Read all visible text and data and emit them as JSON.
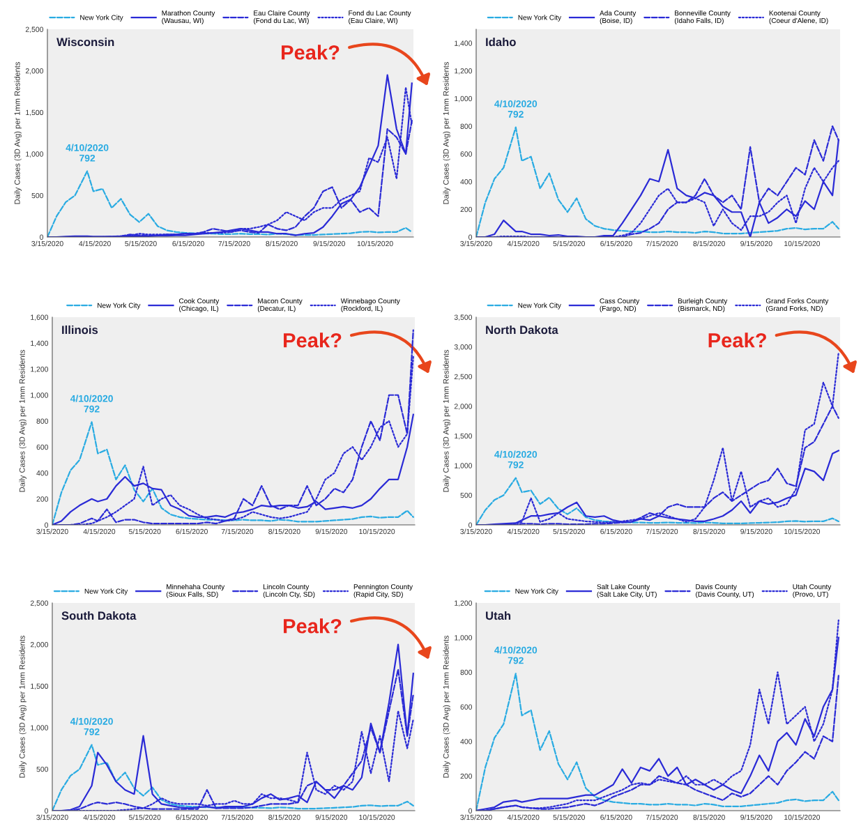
{
  "chart_data": [
    {
      "type": "line",
      "title": "Wisconsin",
      "ylabel": "Daily Cases (3D Avg) per 1mm Residents",
      "legend": "top",
      "x": [
        "2020-03-15",
        "2020-03-21",
        "2020-03-27",
        "2020-04-02",
        "2020-04-10",
        "2020-04-14",
        "2020-04-20",
        "2020-04-26",
        "2020-05-02",
        "2020-05-08",
        "2020-05-14",
        "2020-05-20",
        "2020-05-26",
        "2020-06-01",
        "2020-06-07",
        "2020-06-13",
        "2020-06-19",
        "2020-06-25",
        "2020-07-01",
        "2020-07-07",
        "2020-07-13",
        "2020-07-19",
        "2020-07-25",
        "2020-07-31",
        "2020-08-06",
        "2020-08-12",
        "2020-08-18",
        "2020-08-24",
        "2020-08-30",
        "2020-09-05",
        "2020-09-11",
        "2020-09-17",
        "2020-09-23",
        "2020-09-29",
        "2020-10-05",
        "2020-10-11",
        "2020-10-17",
        "2020-10-23",
        "2020-10-29",
        "2020-11-04",
        "2020-11-08"
      ],
      "xlim": [
        "2020-03-15",
        "2020-11-09"
      ],
      "xticks": [
        {
          "value": "2020-03-15",
          "label": "3/15/2020"
        },
        {
          "value": "2020-04-15",
          "label": "4/15/2020"
        },
        {
          "value": "2020-05-15",
          "label": "5/15/2020"
        },
        {
          "value": "2020-06-15",
          "label": "6/15/2020"
        },
        {
          "value": "2020-07-15",
          "label": "7/15/2020"
        },
        {
          "value": "2020-08-15",
          "label": "8/15/2020"
        },
        {
          "value": "2020-09-15",
          "label": "9/15/2020"
        },
        {
          "value": "2020-10-15",
          "label": "10/15/2020"
        }
      ],
      "ylim": [
        0,
        2500
      ],
      "yticks": [
        0,
        500,
        {
          "value": 1000,
          "label": "1,000"
        },
        {
          "value": 1500,
          "label": "1,500"
        },
        {
          "value": 2000,
          "label": "2,000"
        },
        {
          "value": 2500,
          "label": "2,500"
        }
      ],
      "series": [
        {
          "name": "New York City",
          "color": "#29abe2",
          "line_style": "dashed",
          "values": [
            0,
            250,
            420,
            500,
            792,
            550,
            580,
            350,
            460,
            270,
            180,
            280,
            130,
            80,
            60,
            50,
            45,
            40,
            40,
            35,
            35,
            40,
            35,
            35,
            30,
            40,
            35,
            25,
            25,
            25,
            30,
            35,
            40,
            45,
            60,
            65,
            55,
            60,
            60,
            110,
            60
          ]
        },
        {
          "name": "Marathon County\n(Wausau, WI)",
          "color": "#2a2ad6",
          "line_style": "solid",
          "values": [
            0,
            0,
            5,
            10,
            10,
            5,
            5,
            5,
            5,
            10,
            10,
            10,
            15,
            15,
            20,
            20,
            30,
            40,
            50,
            60,
            80,
            100,
            80,
            60,
            60,
            40,
            40,
            20,
            40,
            50,
            120,
            250,
            400,
            450,
            600,
            850,
            1100,
            1950,
            1300,
            1000,
            1850
          ]
        },
        {
          "name": "Eau Claire County\n(Fond du Lac, WI)",
          "color": "#2a2ad6",
          "line_style": "dashed",
          "values": [
            0,
            0,
            0,
            0,
            0,
            0,
            0,
            5,
            10,
            30,
            20,
            20,
            20,
            30,
            30,
            40,
            40,
            60,
            100,
            80,
            60,
            80,
            60,
            50,
            150,
            100,
            80,
            120,
            250,
            350,
            550,
            600,
            350,
            450,
            300,
            350,
            250,
            1300,
            1200,
            1000,
            1400
          ]
        },
        {
          "name": "Fond du Lac County\n(Eau Claire, WI)",
          "color": "#2a2ad6",
          "line_style": "dotted",
          "values": [
            0,
            0,
            0,
            0,
            0,
            0,
            0,
            0,
            10,
            20,
            40,
            30,
            30,
            30,
            30,
            40,
            40,
            50,
            50,
            50,
            60,
            100,
            100,
            120,
            150,
            200,
            300,
            250,
            200,
            300,
            350,
            350,
            450,
            500,
            550,
            950,
            900,
            1200,
            700,
            1800,
            1350
          ]
        }
      ],
      "annotations": [
        {
          "text": "4/10/2020\n792",
          "x": "2020-04-10",
          "y": 792
        },
        "Peak?"
      ]
    },
    {
      "type": "line",
      "title": "Idaho",
      "ylabel": "Daily Cases (3D Avg) per 1mm Residents",
      "legend": "top",
      "x": [
        "2020-03-15",
        "2020-03-21",
        "2020-03-27",
        "2020-04-02",
        "2020-04-10",
        "2020-04-14",
        "2020-04-20",
        "2020-04-26",
        "2020-05-02",
        "2020-05-08",
        "2020-05-14",
        "2020-05-20",
        "2020-05-26",
        "2020-06-01",
        "2020-06-07",
        "2020-06-13",
        "2020-06-19",
        "2020-06-25",
        "2020-07-01",
        "2020-07-07",
        "2020-07-13",
        "2020-07-19",
        "2020-07-25",
        "2020-07-31",
        "2020-08-06",
        "2020-08-12",
        "2020-08-18",
        "2020-08-24",
        "2020-08-30",
        "2020-09-05",
        "2020-09-11",
        "2020-09-17",
        "2020-09-23",
        "2020-09-29",
        "2020-10-05",
        "2020-10-11",
        "2020-10-17",
        "2020-10-23",
        "2020-10-29",
        "2020-11-04",
        "2020-11-08"
      ],
      "xlim": [
        "2020-03-15",
        "2020-11-09"
      ],
      "xticks": [
        {
          "value": "2020-03-15",
          "label": "3/15/2020"
        },
        {
          "value": "2020-04-15",
          "label": "4/15/2020"
        },
        {
          "value": "2020-05-15",
          "label": "5/15/2020"
        },
        {
          "value": "2020-06-15",
          "label": "6/15/2020"
        },
        {
          "value": "2020-07-15",
          "label": "7/15/2020"
        },
        {
          "value": "2020-08-15",
          "label": "8/15/2020"
        },
        {
          "value": "2020-09-15",
          "label": "9/15/2020"
        },
        {
          "value": "2020-10-15",
          "label": "10/15/2020"
        }
      ],
      "ylim": [
        0,
        1500
      ],
      "yticks": [
        0,
        200,
        400,
        600,
        800,
        {
          "value": 1000,
          "label": "1,000"
        },
        {
          "value": 1200,
          "label": "1,200"
        },
        {
          "value": 1400,
          "label": "1,400"
        }
      ],
      "series": [
        {
          "name": "New York City",
          "color": "#29abe2",
          "line_style": "dashed",
          "values": [
            0,
            250,
            420,
            500,
            792,
            550,
            580,
            350,
            460,
            270,
            180,
            280,
            130,
            80,
            60,
            50,
            45,
            40,
            40,
            35,
            35,
            40,
            35,
            35,
            30,
            40,
            35,
            25,
            25,
            25,
            30,
            35,
            40,
            45,
            60,
            65,
            55,
            60,
            60,
            110,
            60
          ]
        },
        {
          "name": "Ada County\n(Boise, ID)",
          "color": "#2a2ad6",
          "line_style": "solid",
          "values": [
            0,
            0,
            20,
            120,
            40,
            40,
            20,
            20,
            10,
            15,
            5,
            5,
            0,
            0,
            10,
            10,
            100,
            200,
            300,
            420,
            400,
            630,
            350,
            300,
            280,
            320,
            300,
            220,
            180,
            180,
            0,
            250,
            100,
            140,
            200,
            150,
            260,
            200,
            400,
            300,
            700
          ]
        },
        {
          "name": "Bonneville County\n(Idaho Falls, ID)",
          "color": "#2a2ad6",
          "line_style": "dashed",
          "values": [
            0,
            0,
            0,
            0,
            0,
            0,
            0,
            0,
            0,
            0,
            0,
            0,
            0,
            0,
            0,
            0,
            0,
            20,
            30,
            60,
            100,
            200,
            250,
            250,
            300,
            420,
            300,
            250,
            300,
            200,
            650,
            250,
            350,
            300,
            400,
            500,
            450,
            700,
            550,
            800,
            700
          ]
        },
        {
          "name": "Kootenai County\n(Coeur d'Alene, ID)",
          "color": "#2a2ad6",
          "line_style": "dotted",
          "values": [
            0,
            0,
            0,
            5,
            5,
            5,
            0,
            0,
            0,
            0,
            0,
            0,
            0,
            0,
            0,
            0,
            10,
            30,
            100,
            200,
            300,
            350,
            250,
            250,
            280,
            250,
            80,
            200,
            100,
            50,
            150,
            150,
            180,
            250,
            300,
            100,
            350,
            500,
            400,
            500,
            550
          ]
        }
      ],
      "annotations": [
        {
          "text": "4/10/2020\n792",
          "x": "2020-04-10",
          "y": 792
        }
      ]
    },
    {
      "type": "line",
      "title": "Illinois",
      "ylabel": "Daily Cases (3D Avg) per 1mm Residents",
      "legend": "top",
      "x": [
        "2020-03-15",
        "2020-03-21",
        "2020-03-27",
        "2020-04-02",
        "2020-04-10",
        "2020-04-14",
        "2020-04-20",
        "2020-04-26",
        "2020-05-02",
        "2020-05-08",
        "2020-05-14",
        "2020-05-20",
        "2020-05-26",
        "2020-06-01",
        "2020-06-07",
        "2020-06-13",
        "2020-06-19",
        "2020-06-25",
        "2020-07-01",
        "2020-07-07",
        "2020-07-13",
        "2020-07-19",
        "2020-07-25",
        "2020-07-31",
        "2020-08-06",
        "2020-08-12",
        "2020-08-18",
        "2020-08-24",
        "2020-08-30",
        "2020-09-05",
        "2020-09-11",
        "2020-09-17",
        "2020-09-23",
        "2020-09-29",
        "2020-10-05",
        "2020-10-11",
        "2020-10-17",
        "2020-10-23",
        "2020-10-29",
        "2020-11-04",
        "2020-11-08"
      ],
      "xlim": [
        "2020-03-15",
        "2020-11-09"
      ],
      "xticks": [
        {
          "value": "2020-03-15",
          "label": "3/15/2020"
        },
        {
          "value": "2020-04-15",
          "label": "4/15/2020"
        },
        {
          "value": "2020-05-15",
          "label": "5/15/2020"
        },
        {
          "value": "2020-06-15",
          "label": "6/15/2020"
        },
        {
          "value": "2020-07-15",
          "label": "7/15/2020"
        },
        {
          "value": "2020-08-15",
          "label": "8/15/2020"
        },
        {
          "value": "2020-09-15",
          "label": "9/15/2020"
        },
        {
          "value": "2020-10-15",
          "label": "10/15/2020"
        }
      ],
      "ylim": [
        0,
        1600
      ],
      "yticks": [
        0,
        200,
        400,
        600,
        800,
        {
          "value": 1000,
          "label": "1,000"
        },
        {
          "value": 1200,
          "label": "1,200"
        },
        {
          "value": 1400,
          "label": "1,400"
        },
        {
          "value": 1600,
          "label": "1,600"
        }
      ],
      "series": [
        {
          "name": "New York City",
          "color": "#29abe2",
          "line_style": "dashed",
          "values": [
            0,
            250,
            420,
            500,
            792,
            550,
            580,
            350,
            460,
            270,
            180,
            280,
            130,
            80,
            60,
            50,
            45,
            40,
            40,
            35,
            35,
            40,
            35,
            35,
            30,
            40,
            35,
            25,
            25,
            25,
            30,
            35,
            40,
            45,
            60,
            65,
            55,
            60,
            60,
            110,
            60
          ]
        },
        {
          "name": "Cook County\n(Chicago, IL)",
          "color": "#2a2ad6",
          "line_style": "solid",
          "values": [
            0,
            30,
            100,
            150,
            200,
            180,
            200,
            300,
            370,
            300,
            320,
            280,
            270,
            150,
            120,
            70,
            60,
            60,
            70,
            60,
            90,
            100,
            120,
            150,
            140,
            150,
            150,
            130,
            140,
            180,
            120,
            130,
            140,
            130,
            150,
            200,
            280,
            350,
            350,
            600,
            850
          ]
        },
        {
          "name": "Macon County\n(Decatur, IL)",
          "color": "#2a2ad6",
          "line_style": "dashed",
          "values": [
            0,
            0,
            0,
            10,
            50,
            30,
            120,
            20,
            40,
            40,
            20,
            10,
            10,
            10,
            10,
            10,
            10,
            20,
            10,
            30,
            50,
            200,
            150,
            300,
            150,
            120,
            150,
            150,
            300,
            150,
            200,
            280,
            250,
            350,
            600,
            800,
            650,
            1000,
            1000,
            700,
            1500
          ]
        },
        {
          "name": "Winnebago County\n(Rockford, IL)",
          "color": "#2a2ad6",
          "line_style": "dotted",
          "values": [
            0,
            0,
            0,
            0,
            10,
            30,
            60,
            100,
            150,
            200,
            450,
            150,
            200,
            230,
            150,
            120,
            80,
            50,
            40,
            30,
            40,
            60,
            100,
            80,
            60,
            50,
            60,
            80,
            100,
            200,
            350,
            400,
            550,
            600,
            500,
            600,
            750,
            800,
            600,
            700,
            1300
          ]
        }
      ],
      "annotations": [
        {
          "text": "4/10/2020\n792",
          "x": "2020-04-10",
          "y": 792
        },
        "Peak?"
      ]
    },
    {
      "type": "line",
      "title": "North Dakota",
      "ylabel": "Daily Cases (3D Avg) per 1mm Residents",
      "legend": "top",
      "x": [
        "2020-03-15",
        "2020-03-21",
        "2020-03-27",
        "2020-04-02",
        "2020-04-10",
        "2020-04-14",
        "2020-04-20",
        "2020-04-26",
        "2020-05-02",
        "2020-05-08",
        "2020-05-14",
        "2020-05-20",
        "2020-05-26",
        "2020-06-01",
        "2020-06-07",
        "2020-06-13",
        "2020-06-19",
        "2020-06-25",
        "2020-07-01",
        "2020-07-07",
        "2020-07-13",
        "2020-07-19",
        "2020-07-25",
        "2020-07-31",
        "2020-08-06",
        "2020-08-12",
        "2020-08-18",
        "2020-08-24",
        "2020-08-30",
        "2020-09-05",
        "2020-09-11",
        "2020-09-17",
        "2020-09-23",
        "2020-09-29",
        "2020-10-05",
        "2020-10-11",
        "2020-10-17",
        "2020-10-23",
        "2020-10-29",
        "2020-11-04",
        "2020-11-08"
      ],
      "xlim": [
        "2020-03-15",
        "2020-11-09"
      ],
      "xticks": [
        {
          "value": "2020-03-15",
          "label": "3/15/2020"
        },
        {
          "value": "2020-04-15",
          "label": "4/15/2020"
        },
        {
          "value": "2020-05-15",
          "label": "5/15/2020"
        },
        {
          "value": "2020-06-15",
          "label": "6/15/2020"
        },
        {
          "value": "2020-07-15",
          "label": "7/15/2020"
        },
        {
          "value": "2020-08-15",
          "label": "8/15/2020"
        },
        {
          "value": "2020-09-15",
          "label": "9/15/2020"
        },
        {
          "value": "2020-10-15",
          "label": "10/15/2020"
        }
      ],
      "ylim": [
        0,
        3500
      ],
      "yticks": [
        0,
        500,
        {
          "value": 1000,
          "label": "1,000"
        },
        {
          "value": 1500,
          "label": "1,500"
        },
        {
          "value": 2000,
          "label": "2,000"
        },
        {
          "value": 2500,
          "label": "2,500"
        },
        {
          "value": 3000,
          "label": "3,000"
        },
        {
          "value": 3500,
          "label": "3,500"
        }
      ],
      "series": [
        {
          "name": "New York City",
          "color": "#29abe2",
          "line_style": "dashed",
          "values": [
            0,
            250,
            420,
            500,
            792,
            550,
            580,
            350,
            460,
            270,
            180,
            280,
            130,
            80,
            60,
            50,
            45,
            40,
            40,
            35,
            35,
            40,
            35,
            35,
            30,
            40,
            35,
            25,
            25,
            25,
            30,
            35,
            40,
            45,
            60,
            65,
            55,
            60,
            60,
            110,
            60
          ]
        },
        {
          "name": "Cass County\n(Fargo, ND)",
          "color": "#2a2ad6",
          "line_style": "solid",
          "values": [
            0,
            0,
            10,
            20,
            30,
            80,
            150,
            150,
            180,
            200,
            300,
            380,
            150,
            130,
            150,
            80,
            50,
            50,
            100,
            80,
            150,
            120,
            100,
            80,
            60,
            60,
            100,
            150,
            250,
            400,
            200,
            400,
            350,
            380,
            450,
            500,
            950,
            900,
            750,
            1200,
            1250
          ]
        },
        {
          "name": "Burleigh County\n(Bismarck, ND)",
          "color": "#2a2ad6",
          "line_style": "dashed",
          "values": [
            0,
            0,
            0,
            0,
            0,
            20,
            20,
            10,
            20,
            20,
            10,
            10,
            10,
            20,
            20,
            30,
            40,
            50,
            120,
            200,
            150,
            300,
            350,
            300,
            300,
            300,
            450,
            550,
            400,
            500,
            600,
            700,
            750,
            950,
            700,
            650,
            1300,
            1400,
            1700,
            2000,
            1800
          ]
        },
        {
          "name": "Grand Forks County\n(Grand Forks, ND)",
          "color": "#2a2ad6",
          "line_style": "dotted",
          "values": [
            0,
            0,
            0,
            0,
            20,
            50,
            450,
            50,
            100,
            200,
            100,
            80,
            60,
            50,
            40,
            50,
            60,
            80,
            100,
            150,
            200,
            150,
            100,
            50,
            100,
            300,
            750,
            1300,
            400,
            900,
            300,
            400,
            450,
            300,
            350,
            600,
            1600,
            1700,
            2400,
            2000,
            2900
          ]
        }
      ],
      "annotations": [
        {
          "text": "4/10/2020\n792",
          "x": "2020-04-10",
          "y": 792
        },
        "Peak?"
      ]
    },
    {
      "type": "line",
      "title": "South Dakota",
      "ylabel": "Daily Cases (3D Avg) per 1mm Residents",
      "legend": "top",
      "x": [
        "2020-03-15",
        "2020-03-21",
        "2020-03-27",
        "2020-04-02",
        "2020-04-10",
        "2020-04-14",
        "2020-04-20",
        "2020-04-26",
        "2020-05-02",
        "2020-05-08",
        "2020-05-14",
        "2020-05-20",
        "2020-05-26",
        "2020-06-01",
        "2020-06-07",
        "2020-06-13",
        "2020-06-19",
        "2020-06-25",
        "2020-07-01",
        "2020-07-07",
        "2020-07-13",
        "2020-07-19",
        "2020-07-25",
        "2020-07-31",
        "2020-08-06",
        "2020-08-12",
        "2020-08-18",
        "2020-08-24",
        "2020-08-30",
        "2020-09-05",
        "2020-09-11",
        "2020-09-17",
        "2020-09-23",
        "2020-09-29",
        "2020-10-05",
        "2020-10-11",
        "2020-10-17",
        "2020-10-23",
        "2020-10-29",
        "2020-11-04",
        "2020-11-08"
      ],
      "xlim": [
        "2020-03-15",
        "2020-11-09"
      ],
      "xticks": [
        {
          "value": "2020-03-15",
          "label": "3/15/2020"
        },
        {
          "value": "2020-04-15",
          "label": "4/15/2020"
        },
        {
          "value": "2020-05-15",
          "label": "5/15/2020"
        },
        {
          "value": "2020-06-15",
          "label": "6/15/2020"
        },
        {
          "value": "2020-07-15",
          "label": "7/15/2020"
        },
        {
          "value": "2020-08-15",
          "label": "8/15/2020"
        },
        {
          "value": "2020-09-15",
          "label": "9/15/2020"
        },
        {
          "value": "2020-10-15",
          "label": "10/15/2020"
        }
      ],
      "ylim": [
        0,
        2500
      ],
      "yticks": [
        0,
        500,
        {
          "value": 1000,
          "label": "1,000"
        },
        {
          "value": 1500,
          "label": "1,500"
        },
        {
          "value": 2000,
          "label": "2,000"
        },
        {
          "value": 2500,
          "label": "2,500"
        }
      ],
      "series": [
        {
          "name": "New York City",
          "color": "#29abe2",
          "line_style": "dashed",
          "values": [
            0,
            250,
            420,
            500,
            792,
            550,
            580,
            350,
            460,
            270,
            180,
            280,
            130,
            80,
            60,
            50,
            45,
            40,
            40,
            35,
            35,
            40,
            35,
            35,
            30,
            40,
            35,
            25,
            25,
            25,
            30,
            35,
            40,
            45,
            60,
            65,
            55,
            60,
            60,
            110,
            60
          ]
        },
        {
          "name": "Minnehaha County\n(Sioux Falls, SD)",
          "color": "#2a2ad6",
          "line_style": "solid",
          "values": [
            0,
            0,
            10,
            50,
            300,
            700,
            550,
            350,
            250,
            200,
            900,
            200,
            80,
            60,
            40,
            30,
            40,
            50,
            30,
            50,
            50,
            50,
            80,
            150,
            200,
            130,
            150,
            180,
            100,
            350,
            250,
            150,
            300,
            250,
            400,
            1050,
            700,
            1300,
            2000,
            900,
            1650
          ]
        },
        {
          "name": "Lincoln County\n(Lincoln Cty, SD)",
          "color": "#2a2ad6",
          "line_style": "dashed",
          "values": [
            0,
            0,
            0,
            20,
            80,
            100,
            80,
            100,
            80,
            50,
            30,
            20,
            20,
            20,
            20,
            20,
            20,
            250,
            30,
            30,
            30,
            30,
            40,
            60,
            80,
            80,
            80,
            100,
            300,
            350,
            250,
            250,
            300,
            450,
            600,
            1000,
            700,
            1200,
            1700,
            900,
            1400
          ]
        },
        {
          "name": "Pennington County\n(Rapid City, SD)",
          "color": "#2a2ad6",
          "line_style": "dotted",
          "values": [
            0,
            0,
            0,
            0,
            0,
            0,
            0,
            0,
            10,
            20,
            30,
            80,
            150,
            100,
            80,
            80,
            80,
            60,
            80,
            80,
            120,
            80,
            80,
            200,
            150,
            150,
            130,
            100,
            700,
            250,
            200,
            300,
            250,
            350,
            950,
            450,
            900,
            350,
            1200,
            750,
            1100
          ]
        }
      ],
      "annotations": [
        {
          "text": "4/10/2020\n792",
          "x": "2020-04-10",
          "y": 792
        },
        "Peak?"
      ]
    },
    {
      "type": "line",
      "title": "Utah",
      "ylabel": "Daily Cases (3D Avg) per 1mm Residents",
      "legend": "top",
      "x": [
        "2020-03-15",
        "2020-03-21",
        "2020-03-27",
        "2020-04-02",
        "2020-04-10",
        "2020-04-14",
        "2020-04-20",
        "2020-04-26",
        "2020-05-02",
        "2020-05-08",
        "2020-05-14",
        "2020-05-20",
        "2020-05-26",
        "2020-06-01",
        "2020-06-07",
        "2020-06-13",
        "2020-06-19",
        "2020-06-25",
        "2020-07-01",
        "2020-07-07",
        "2020-07-13",
        "2020-07-19",
        "2020-07-25",
        "2020-07-31",
        "2020-08-06",
        "2020-08-12",
        "2020-08-18",
        "2020-08-24",
        "2020-08-30",
        "2020-09-05",
        "2020-09-11",
        "2020-09-17",
        "2020-09-23",
        "2020-09-29",
        "2020-10-05",
        "2020-10-11",
        "2020-10-17",
        "2020-10-23",
        "2020-10-29",
        "2020-11-04",
        "2020-11-08"
      ],
      "xlim": [
        "2020-03-15",
        "2020-11-09"
      ],
      "xticks": [
        {
          "value": "2020-03-15",
          "label": "3/15/2020"
        },
        {
          "value": "2020-04-15",
          "label": "4/15/2020"
        },
        {
          "value": "2020-05-15",
          "label": "5/15/2020"
        },
        {
          "value": "2020-06-15",
          "label": "6/15/2020"
        },
        {
          "value": "2020-07-15",
          "label": "7/15/2020"
        },
        {
          "value": "2020-08-15",
          "label": "8/15/2020"
        },
        {
          "value": "2020-09-15",
          "label": "9/15/2020"
        },
        {
          "value": "2020-10-15",
          "label": "10/15/2020"
        }
      ],
      "ylim": [
        0,
        1200
      ],
      "yticks": [
        0,
        200,
        400,
        600,
        800,
        {
          "value": 1000,
          "label": "1,000"
        },
        {
          "value": 1200,
          "label": "1,200"
        }
      ],
      "series": [
        {
          "name": "New York City",
          "color": "#29abe2",
          "line_style": "dashed",
          "values": [
            0,
            250,
            420,
            500,
            792,
            550,
            580,
            350,
            460,
            270,
            180,
            280,
            130,
            80,
            60,
            50,
            45,
            40,
            40,
            35,
            35,
            40,
            35,
            35,
            30,
            40,
            35,
            25,
            25,
            25,
            30,
            35,
            40,
            45,
            60,
            65,
            55,
            60,
            60,
            110,
            60
          ]
        },
        {
          "name": "Salt Lake County\n(Salt Lake City, UT)",
          "color": "#2a2ad6",
          "line_style": "solid",
          "values": [
            0,
            10,
            20,
            50,
            60,
            50,
            60,
            70,
            70,
            70,
            70,
            80,
            90,
            90,
            120,
            150,
            240,
            160,
            250,
            230,
            300,
            200,
            250,
            150,
            180,
            150,
            120,
            150,
            120,
            100,
            200,
            320,
            230,
            400,
            450,
            380,
            530,
            430,
            600,
            700,
            1000
          ]
        },
        {
          "name": "Davis County\n(Davis County, UT)",
          "color": "#2a2ad6",
          "line_style": "dashed",
          "values": [
            0,
            0,
            10,
            20,
            30,
            20,
            15,
            10,
            10,
            15,
            20,
            30,
            40,
            30,
            50,
            80,
            100,
            120,
            150,
            150,
            200,
            180,
            160,
            150,
            120,
            100,
            80,
            60,
            100,
            80,
            100,
            150,
            200,
            150,
            230,
            280,
            340,
            300,
            430,
            400,
            780
          ]
        },
        {
          "name": "Utah County\n(Provo, UT)",
          "color": "#2a2ad6",
          "line_style": "dotted",
          "values": [
            0,
            0,
            10,
            20,
            30,
            20,
            15,
            15,
            20,
            30,
            40,
            60,
            60,
            60,
            80,
            100,
            120,
            150,
            160,
            150,
            180,
            170,
            160,
            200,
            150,
            150,
            180,
            150,
            200,
            230,
            380,
            700,
            500,
            800,
            500,
            550,
            600,
            400,
            500,
            700,
            1100
          ]
        }
      ],
      "annotations": [
        {
          "text": "4/10/2020\n792",
          "x": "2020-04-10",
          "y": 792
        }
      ]
    }
  ]
}
